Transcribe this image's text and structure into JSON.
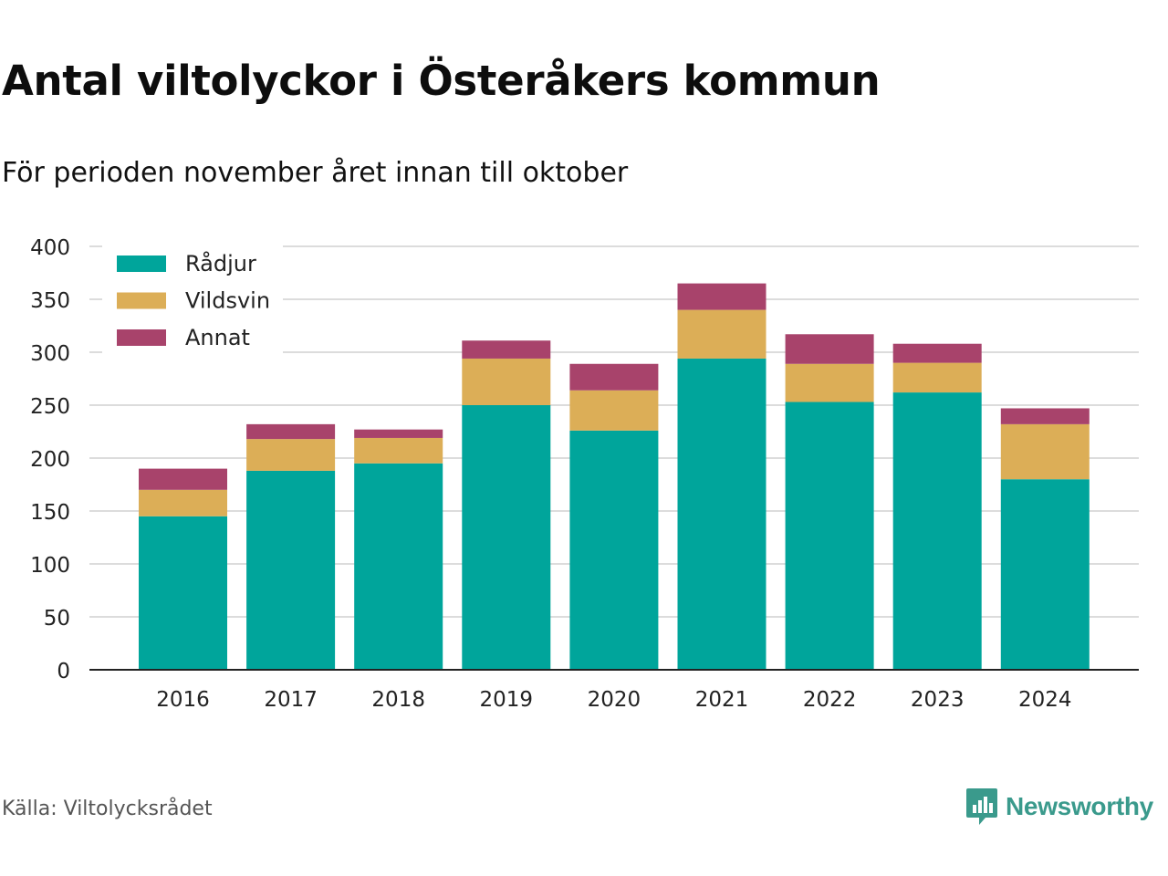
{
  "title": "Antal viltolyckor i Österåkers kommun",
  "subtitle": "För perioden november året innan till oktober",
  "source": "Källa: Viltolycksrådet",
  "brand": "Newsworthy",
  "chart_data": {
    "type": "bar",
    "stacked": true,
    "categories": [
      "2016",
      "2017",
      "2018",
      "2019",
      "2020",
      "2021",
      "2022",
      "2023",
      "2024"
    ],
    "series": [
      {
        "name": "Rådjur",
        "color": "#00a59b",
        "values": [
          145,
          188,
          195,
          250,
          226,
          294,
          253,
          262,
          180
        ]
      },
      {
        "name": "Vildsvin",
        "color": "#dcae57",
        "values": [
          25,
          30,
          24,
          44,
          38,
          46,
          36,
          28,
          52
        ]
      },
      {
        "name": "Annat",
        "color": "#a8436b",
        "values": [
          20,
          14,
          8,
          17,
          25,
          25,
          28,
          18,
          15
        ]
      }
    ],
    "ylim": [
      0,
      400
    ],
    "yticks": [
      0,
      50,
      100,
      150,
      200,
      250,
      300,
      350,
      400
    ],
    "grid": true,
    "legend": "top-left"
  }
}
